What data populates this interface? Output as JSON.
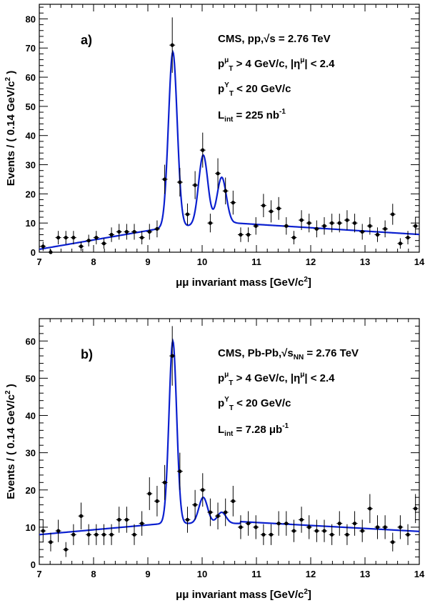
{
  "chart_data": [
    {
      "type": "scatter",
      "panel_label": "a)",
      "xlabel_prefix": "μμ",
      "xlabel_text": "invariant mass [GeV/c",
      "xlabel_sup": "2",
      "xlabel_close": "]",
      "ylabel": "Events / ( 0.14 GeV/c",
      "ylabel_sup": "2",
      "ylabel_close": " )",
      "xlim": [
        7,
        14
      ],
      "ylim": [
        0,
        85
      ],
      "xticks": [
        7,
        8,
        9,
        10,
        11,
        12,
        13,
        14
      ],
      "yticks": [
        0,
        10,
        20,
        30,
        40,
        50,
        60,
        70,
        80
      ],
      "annotations": {
        "line1_pre": "CMS, pp,",
        "line1_root": "√s",
        "line1_post": " = 2.76 TeV",
        "line2_p": "p",
        "line2_sup": "μ",
        "line2_sub": "T",
        "line2_mid": " > 4 GeV/c, |η",
        "line2_sup2": "μ",
        "line2_end": "| < 2.4",
        "line3_p": "p",
        "line3_sup": "Υ",
        "line3_sub": "T",
        "line3_end": " < 20 GeV/c",
        "line4_l": "L",
        "line4_sub": "int",
        "line4_mid": " = 225 nb",
        "line4_sup": "-1"
      },
      "series": [
        {
          "type": "points",
          "x": [
            7.07,
            7.21,
            7.35,
            7.49,
            7.63,
            7.77,
            7.91,
            8.05,
            8.19,
            8.33,
            8.47,
            8.61,
            8.75,
            8.89,
            9.03,
            9.17,
            9.31,
            9.45,
            9.59,
            9.73,
            9.87,
            10.01,
            10.15,
            10.29,
            10.43,
            10.57,
            10.71,
            10.85,
            10.99,
            11.13,
            11.27,
            11.41,
            11.55,
            11.69,
            11.83,
            11.97,
            12.11,
            12.25,
            12.39,
            12.53,
            12.67,
            12.81,
            12.95,
            13.09,
            13.23,
            13.37,
            13.51,
            13.65,
            13.79,
            13.93
          ],
          "y": [
            2,
            0,
            5,
            5,
            5,
            2,
            4,
            5,
            3,
            6,
            7,
            7,
            7,
            5,
            7,
            8,
            25,
            71,
            24,
            13,
            23,
            35,
            10,
            27,
            21,
            17,
            6,
            6,
            9,
            16,
            14,
            15,
            9,
            5,
            11,
            10,
            8,
            9,
            10,
            10,
            11,
            10,
            7,
            9,
            6,
            8,
            13,
            3,
            5,
            9
          ],
          "err": [
            1.6,
            1,
            2.3,
            2.3,
            2.3,
            1.6,
            2,
            2.3,
            1.8,
            2.5,
            2.7,
            2.7,
            2.7,
            2.3,
            2.7,
            2.9,
            5,
            9.5,
            4.9,
            3.7,
            4.8,
            6,
            3.2,
            5.2,
            4.6,
            4.1,
            2.5,
            2.5,
            3,
            4,
            3.8,
            3.9,
            3,
            2.3,
            3.4,
            3.2,
            2.9,
            3,
            3.2,
            3.2,
            3.4,
            3.2,
            2.7,
            3,
            2.5,
            2.9,
            3.6,
            1.8,
            2.3,
            3
          ]
        },
        {
          "type": "fit",
          "color": "#0a1fcf",
          "background_a": 1.0,
          "background_b": 0.12,
          "peaks": [
            {
              "mass": 9.46,
              "height": 60,
              "sigma": 0.08
            },
            {
              "mass": 10.02,
              "height": 24,
              "sigma": 0.085
            },
            {
              "mass": 10.36,
              "height": 16,
              "sigma": 0.085
            }
          ]
        }
      ]
    },
    {
      "type": "scatter",
      "panel_label": "b)",
      "xlabel_prefix": "μμ",
      "xlabel_text": "invariant mass [GeV/c",
      "xlabel_sup": "2",
      "xlabel_close": "]",
      "ylabel": "Events / ( 0.14 GeV/c",
      "ylabel_sup": "2",
      "ylabel_close": " )",
      "xlim": [
        7,
        14
      ],
      "ylim": [
        0,
        66
      ],
      "xticks": [
        7,
        8,
        9,
        10,
        11,
        12,
        13,
        14
      ],
      "yticks": [
        0,
        10,
        20,
        30,
        40,
        50,
        60
      ],
      "annotations": {
        "line1_pre": "CMS, Pb-Pb,",
        "line1_root": "√s",
        "line1_rootsub": "NN",
        "line1_post": " = 2.76 TeV",
        "line2_p": "p",
        "line2_sup": "μ",
        "line2_sub": "T",
        "line2_mid": " > 4 GeV/c, |η",
        "line2_sup2": "μ",
        "line2_end": "| < 2.4",
        "line3_p": "p",
        "line3_sup": "Υ",
        "line3_sub": "T",
        "line3_end": " < 20 GeV/c",
        "line4_l": "L",
        "line4_sub": "int",
        "line4_mid": " = 7.28 μb",
        "line4_sup": "-1"
      },
      "series": [
        {
          "type": "points",
          "x": [
            7.07,
            7.21,
            7.35,
            7.49,
            7.63,
            7.77,
            7.91,
            8.05,
            8.19,
            8.33,
            8.47,
            8.61,
            8.75,
            8.89,
            9.03,
            9.17,
            9.31,
            9.45,
            9.59,
            9.73,
            9.87,
            10.01,
            10.15,
            10.29,
            10.43,
            10.57,
            10.71,
            10.85,
            10.99,
            11.13,
            11.27,
            11.41,
            11.55,
            11.69,
            11.83,
            11.97,
            12.11,
            12.25,
            12.39,
            12.53,
            12.67,
            12.81,
            12.95,
            13.09,
            13.23,
            13.37,
            13.51,
            13.65,
            13.79,
            13.93
          ],
          "y": [
            9,
            6,
            9,
            4,
            8,
            13,
            8,
            8,
            8,
            8,
            12,
            12,
            8,
            11,
            19,
            17,
            22,
            56,
            25,
            12,
            16,
            20,
            14,
            13,
            14,
            17,
            10,
            11,
            10,
            8,
            8,
            11,
            11,
            9,
            12,
            10,
            9,
            9,
            8,
            11,
            8,
            11,
            9,
            15,
            10,
            10,
            6,
            10,
            8,
            15
          ],
          "err": [
            3,
            2.5,
            3,
            2,
            2.8,
            3.6,
            2.8,
            2.8,
            2.8,
            2.8,
            3.5,
            3.5,
            2.8,
            3.3,
            4.4,
            4.1,
            4.7,
            8,
            5,
            3.5,
            4,
            4.5,
            3.7,
            3.6,
            3.7,
            4.1,
            3.2,
            3.3,
            3.2,
            2.8,
            2.8,
            3.3,
            3.3,
            3,
            3.5,
            3.2,
            3,
            3,
            2.8,
            3.3,
            2.8,
            3.3,
            3,
            3.9,
            3.2,
            3.2,
            2.5,
            3.2,
            2.8,
            3.9
          ]
        },
        {
          "type": "fit",
          "color": "#0a1fcf",
          "background_a": 9.5,
          "background_b": 0.1,
          "peaks": [
            {
              "mass": 9.46,
              "height": 49,
              "sigma": 0.07
            },
            {
              "mass": 10.02,
              "height": 7,
              "sigma": 0.08
            },
            {
              "mass": 10.36,
              "height": 3,
              "sigma": 0.08
            }
          ]
        }
      ]
    }
  ]
}
